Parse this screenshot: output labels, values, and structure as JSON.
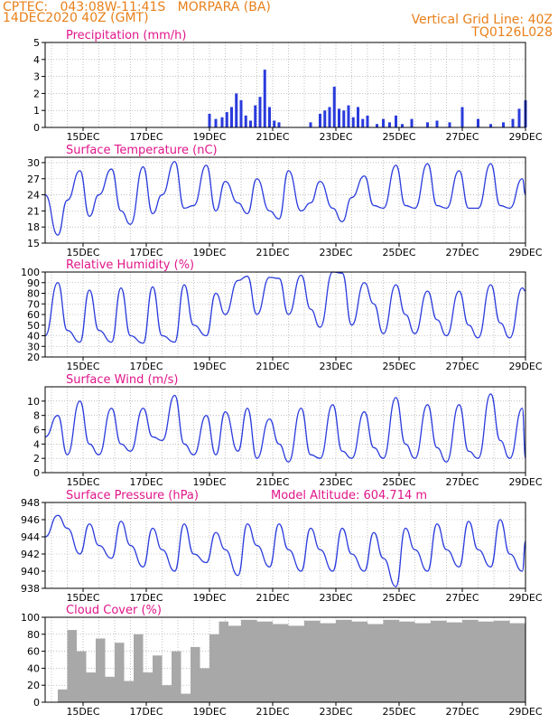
{
  "header": {
    "line1": "CPTEC:   043:08W-11:41S   MORPARA (BA)",
    "line2": "14DEC2020 40Z (GMT)",
    "grid_note": "Vertical Grid Line: 40Z",
    "run_code": "TQ0126L028"
  },
  "colors": {
    "header": "#e8801a",
    "title": "#e0168a",
    "series": "#2a3bdc",
    "cloud": "#a8a8a8",
    "grid": "#9a9a9a",
    "text": "#000000"
  },
  "x_tick_labels": [
    "15DEC",
    "17DEC",
    "19DEC",
    "21DEC",
    "23DEC",
    "25DEC",
    "27DEC",
    "29DEC"
  ],
  "chart_data": [
    {
      "type": "bar",
      "title": "Precipitation  (mm/h)",
      "ylim": [
        0,
        5
      ],
      "yticks": [
        0,
        1,
        2,
        3,
        4,
        5
      ],
      "x": [
        19.0,
        19.2,
        19.4,
        19.55,
        19.7,
        19.85,
        20.0,
        20.15,
        20.3,
        20.45,
        20.6,
        20.75,
        20.9,
        21.05,
        21.2,
        22.2,
        22.5,
        22.65,
        22.8,
        22.95,
        23.1,
        23.25,
        23.4,
        23.55,
        23.7,
        23.85,
        24.0,
        24.3,
        24.5,
        24.7,
        24.9,
        25.1,
        25.4,
        25.9,
        26.2,
        26.6,
        27.0,
        27.5,
        27.9,
        28.3,
        28.6,
        28.8,
        29.0
      ],
      "values": [
        0.8,
        0.5,
        0.6,
        0.9,
        1.2,
        2.0,
        1.6,
        0.7,
        0.4,
        1.3,
        1.8,
        3.4,
        1.2,
        0.4,
        0.3,
        0.3,
        0.8,
        1.0,
        1.2,
        2.4,
        1.1,
        1.0,
        1.3,
        0.6,
        1.2,
        0.5,
        0.7,
        0.2,
        0.5,
        0.3,
        0.7,
        0.2,
        0.5,
        0.3,
        0.4,
        0.3,
        1.2,
        0.5,
        0.2,
        0.3,
        0.5,
        1.1,
        1.6
      ]
    },
    {
      "type": "line",
      "title": "Surface Temperature (nC)",
      "ylim": [
        15,
        31
      ],
      "yticks": [
        15,
        18,
        21,
        24,
        27,
        30
      ],
      "x": [
        13.8,
        14.2,
        14.5,
        14.9,
        15.2,
        15.5,
        15.9,
        16.2,
        16.5,
        16.9,
        17.2,
        17.5,
        17.9,
        18.2,
        18.5,
        18.9,
        19.2,
        19.5,
        19.9,
        20.2,
        20.5,
        20.9,
        21.2,
        21.5,
        21.9,
        22.2,
        22.5,
        22.9,
        23.2,
        23.5,
        23.9,
        24.2,
        24.5,
        24.9,
        25.2,
        25.5,
        25.9,
        26.2,
        26.5,
        26.9,
        27.2,
        27.5,
        27.9,
        28.2,
        28.5,
        28.9,
        29.0
      ],
      "values": [
        24,
        16.5,
        23,
        28.5,
        20,
        24,
        28.8,
        21,
        18.5,
        29.2,
        20.5,
        24,
        30.2,
        21.5,
        22,
        29.5,
        21,
        26.5,
        22.5,
        20.5,
        27,
        21,
        19.5,
        28.5,
        21,
        22.5,
        26.5,
        21.5,
        19,
        23.5,
        27.5,
        22,
        21.5,
        29.5,
        22,
        21.5,
        29.8,
        22,
        21.5,
        28.5,
        21.5,
        21.5,
        29.8,
        22,
        21.5,
        27,
        24
      ]
    },
    {
      "type": "line",
      "title": "Relative Humidity  (%)",
      "ylim": [
        20,
        100
      ],
      "yticks": [
        20,
        30,
        40,
        50,
        60,
        70,
        80,
        90,
        100
      ],
      "x": [
        13.8,
        14.2,
        14.5,
        14.9,
        15.2,
        15.5,
        15.9,
        16.2,
        16.5,
        16.9,
        17.2,
        17.5,
        17.9,
        18.2,
        18.5,
        18.9,
        19.2,
        19.5,
        19.9,
        20.2,
        20.5,
        20.9,
        21.2,
        21.5,
        21.9,
        22.2,
        22.5,
        22.9,
        23.2,
        23.5,
        23.9,
        24.2,
        24.5,
        24.9,
        25.2,
        25.5,
        25.9,
        26.2,
        26.5,
        26.9,
        27.2,
        27.5,
        27.9,
        28.2,
        28.5,
        28.9,
        29.0
      ],
      "values": [
        40,
        90,
        45,
        34,
        83,
        45,
        34,
        85,
        40,
        33,
        86,
        40,
        34,
        88,
        50,
        40,
        80,
        60,
        92,
        96,
        60,
        95,
        94,
        60,
        97,
        65,
        48,
        100,
        99,
        50,
        90,
        70,
        42,
        88,
        60,
        42,
        82,
        55,
        40,
        82,
        50,
        38,
        88,
        52,
        38,
        85,
        82
      ]
    },
    {
      "type": "line",
      "title": "Surface  Wind  (m/s)",
      "ylim": [
        0,
        12
      ],
      "yticks": [
        0,
        2,
        4,
        6,
        8,
        10
      ],
      "x": [
        13.8,
        14.2,
        14.5,
        14.9,
        15.2,
        15.5,
        15.9,
        16.2,
        16.5,
        16.9,
        17.2,
        17.5,
        17.9,
        18.2,
        18.5,
        18.9,
        19.2,
        19.5,
        19.9,
        20.2,
        20.5,
        20.9,
        21.2,
        21.5,
        21.9,
        22.2,
        22.5,
        22.9,
        23.2,
        23.5,
        23.9,
        24.2,
        24.5,
        24.9,
        25.2,
        25.5,
        25.9,
        26.2,
        26.5,
        26.9,
        27.2,
        27.5,
        27.9,
        28.2,
        28.5,
        28.9,
        29.0
      ],
      "values": [
        5,
        8,
        2.5,
        10,
        4,
        2.5,
        9,
        4,
        3,
        9,
        5,
        4.5,
        10.8,
        4,
        2.5,
        8,
        2.5,
        8.5,
        3,
        9,
        2,
        7.5,
        4,
        1.5,
        9,
        2.5,
        2,
        9.5,
        3,
        2,
        8.5,
        3.5,
        2,
        10.5,
        4,
        2,
        9.5,
        3.5,
        1.5,
        9.5,
        3,
        2,
        11,
        4.5,
        2,
        9,
        2
      ]
    },
    {
      "type": "line",
      "title": "Surface Pressure (hPa)",
      "annotation": "Model Altitude: 604.714  m",
      "ylim": [
        938,
        948
      ],
      "yticks": [
        938,
        940,
        942,
        944,
        946,
        948
      ],
      "x": [
        13.8,
        14.2,
        14.5,
        14.9,
        15.2,
        15.5,
        15.9,
        16.2,
        16.5,
        16.9,
        17.2,
        17.5,
        17.9,
        18.2,
        18.5,
        18.9,
        19.2,
        19.5,
        19.9,
        20.2,
        20.5,
        20.9,
        21.2,
        21.5,
        21.9,
        22.2,
        22.5,
        22.9,
        23.2,
        23.5,
        23.9,
        24.2,
        24.5,
        24.9,
        25.2,
        25.5,
        25.9,
        26.2,
        26.5,
        26.9,
        27.2,
        27.5,
        27.9,
        28.2,
        28.5,
        28.9,
        29.0
      ],
      "values": [
        944,
        946.5,
        945,
        942,
        945.5,
        943,
        941.5,
        945.8,
        943,
        940.5,
        945,
        942.5,
        940,
        945.5,
        942,
        941,
        944.5,
        942.5,
        939.5,
        945.5,
        943,
        940.5,
        945.5,
        942.5,
        940,
        945,
        942.5,
        940,
        945,
        942,
        940,
        944.5,
        941.5,
        938.2,
        945,
        942.5,
        940,
        945.5,
        942.5,
        940.5,
        945.8,
        942.5,
        940.5,
        946,
        942,
        940,
        943.5
      ]
    },
    {
      "type": "area",
      "title": "Cloud Cover  (%)",
      "ylim": [
        0,
        100
      ],
      "yticks": [
        0,
        20,
        40,
        60,
        80,
        100
      ],
      "x": [
        14.2,
        14.5,
        14.8,
        15.1,
        15.4,
        15.7,
        16.0,
        16.3,
        16.6,
        16.9,
        17.2,
        17.5,
        17.8,
        18.1,
        18.4,
        18.7,
        19.0,
        19.3,
        19.6,
        20.0,
        20.5,
        21.0,
        21.5,
        22.0,
        22.5,
        23.0,
        23.5,
        24.0,
        24.5,
        25.0,
        25.5,
        26.0,
        26.5,
        27.0,
        27.5,
        28.0,
        28.5,
        29.0
      ],
      "values": [
        15,
        85,
        60,
        35,
        75,
        30,
        70,
        25,
        80,
        35,
        55,
        20,
        60,
        10,
        65,
        40,
        80,
        95,
        90,
        97,
        95,
        92,
        90,
        96,
        93,
        97,
        95,
        92,
        97,
        95,
        93,
        96,
        94,
        97,
        95,
        96,
        93,
        98
      ]
    }
  ]
}
